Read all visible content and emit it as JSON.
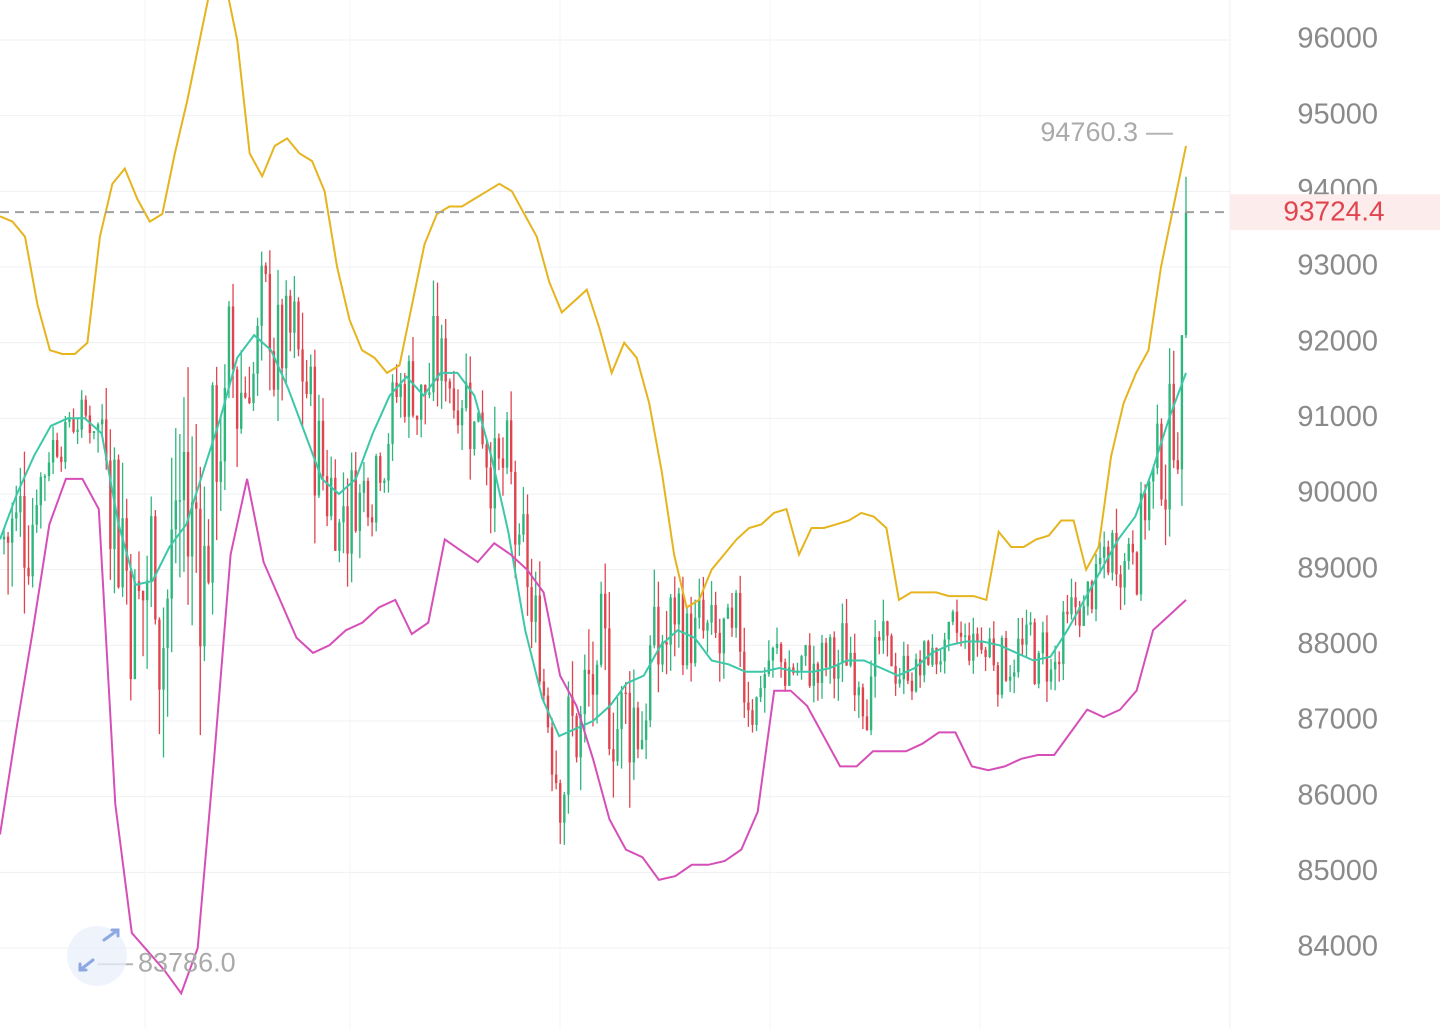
{
  "chart_data": {
    "type": "candlestick",
    "y_axis": {
      "ticks": [
        84000,
        85000,
        86000,
        87000,
        88000,
        89000,
        90000,
        91000,
        92000,
        93000,
        94000,
        95000,
        96000
      ],
      "labels": [
        "84000",
        "85000",
        "86000",
        "87000",
        "88000",
        "89000",
        "90000",
        "91000",
        "92000",
        "93000",
        "94000",
        "95000",
        "96000"
      ],
      "position": "right"
    },
    "current_price": {
      "value": 93724.4,
      "label": "93724.4",
      "color": "#e0454f"
    },
    "high_marker": {
      "value": 94760.3,
      "label": "94760.3"
    },
    "low_marker": {
      "value": 83786.0,
      "label": "83786.0"
    },
    "colors": {
      "up": "#2eb67d",
      "down": "#e0454f",
      "upper_band": "#e6b41e",
      "middle_band": "#3cc8a8",
      "lower_band": "#d64fb8",
      "grid": "#eef0f3"
    },
    "grid": true,
    "indicators": {
      "upper_band": [
        93670,
        93600,
        93400,
        92500,
        91900,
        91850,
        91850,
        92000,
        93400,
        94100,
        94300,
        93900,
        93600,
        93700,
        94500,
        95200,
        96000,
        96800,
        96800,
        96000,
        94500,
        94200,
        94600,
        94700,
        94500,
        94400,
        94000,
        93000,
        92300,
        91900,
        91800,
        91600,
        91700,
        92500,
        93300,
        93700,
        93800,
        93800,
        93900,
        94000,
        94100,
        94000,
        93700,
        93400,
        92800,
        92400,
        92550,
        92700,
        92200,
        91600,
        92000,
        91800,
        91200,
        90300,
        89200,
        88500,
        88600,
        89000,
        89200,
        89400,
        89550,
        89600,
        89750,
        89800,
        89200,
        89550,
        89550,
        89600,
        89650,
        89750,
        89700,
        89550,
        88600,
        88700,
        88700,
        88700,
        88650,
        88650,
        88650,
        88600,
        89500,
        89300,
        89300,
        89400,
        89450,
        89650,
        89650,
        89000,
        89300,
        90500,
        91200,
        91600,
        91900,
        93000,
        93800,
        94600
      ],
      "middle_band": [
        89400,
        90000,
        90500,
        90900,
        91000,
        91000,
        90800,
        89600,
        88800,
        88850,
        89300,
        89600,
        90300,
        91000,
        91800,
        92100,
        91900,
        91400,
        90800,
        90200,
        90000,
        90200,
        90800,
        91300,
        91550,
        91300,
        91600,
        91600,
        91300,
        90500,
        89500,
        88200,
        87300,
        86800,
        86900,
        87000,
        87200,
        87500,
        87600,
        88000,
        88200,
        88100,
        87800,
        87750,
        87650,
        87650,
        87700,
        87650,
        87650,
        87700,
        87800,
        87800,
        87700,
        87600,
        87700,
        87900,
        88000,
        88050,
        88050,
        88000,
        87900,
        87800,
        87850,
        88200,
        88600,
        89000,
        89400,
        89700,
        90300,
        91000,
        91600
      ],
      "lower_band": [
        85500,
        86900,
        88200,
        89600,
        90200,
        90200,
        89800,
        85900,
        84200,
        83950,
        83700,
        83400,
        84000,
        86500,
        89200,
        90200,
        89100,
        88600,
        88100,
        87900,
        88000,
        88200,
        88300,
        88500,
        88600,
        88150,
        88300,
        89400,
        89250,
        89100,
        89350,
        89200,
        89000,
        88700,
        87600,
        87200,
        86500,
        85700,
        85300,
        85200,
        84900,
        84950,
        85100,
        85100,
        85150,
        85300,
        85800,
        87400,
        87400,
        87200,
        86800,
        86400,
        86400,
        86600,
        86600,
        86600,
        86700,
        86850,
        86850,
        86400,
        86350,
        86400,
        86500,
        86550,
        86550,
        86850,
        87150,
        87050,
        87150,
        87400,
        88200,
        88400,
        88600
      ]
    },
    "notes": "BTC price candlestick chart with Bollinger-style bands; candle OHLC values estimated from the y-axis."
  }
}
